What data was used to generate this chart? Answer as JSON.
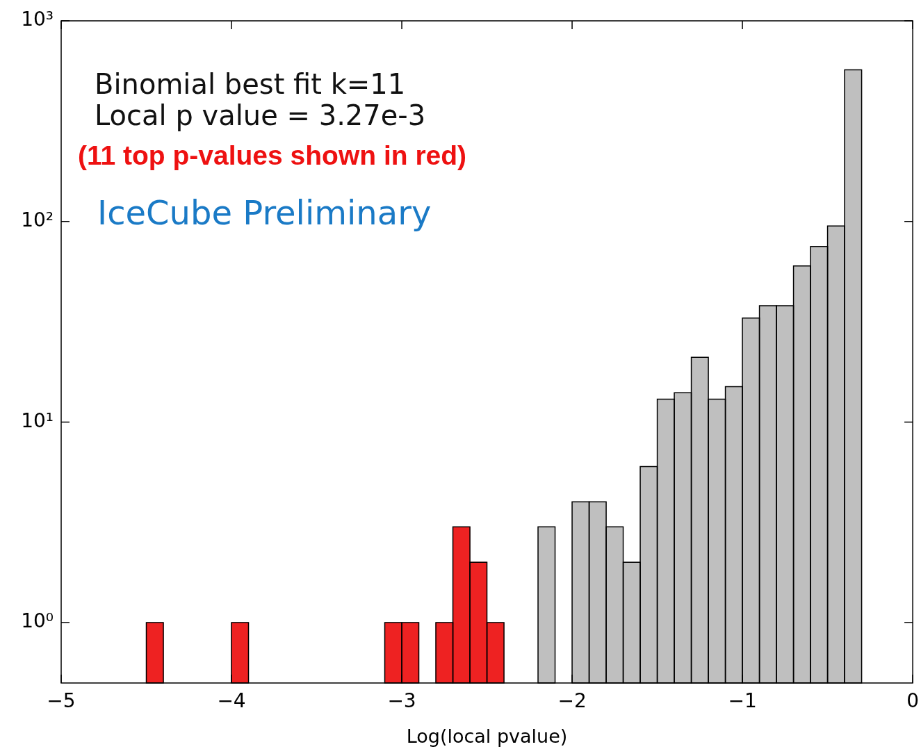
{
  "chart_data": {
    "type": "histogram",
    "xlabel": "Log(local pvalue)",
    "log": "y",
    "bins": [
      -4.5,
      -4.4,
      -4.3,
      -4.2,
      -4.1,
      -4.0,
      -3.9,
      -3.8,
      -3.7,
      -3.6,
      -3.5,
      -3.4,
      -3.3,
      -3.2,
      -3.1,
      -3.0,
      -2.9,
      -2.8,
      -2.7,
      -2.6,
      -2.5,
      -2.4,
      -2.3,
      -2.2,
      -2.1,
      -2.0,
      -1.9,
      -1.8,
      -1.7,
      -1.6,
      -1.5,
      -1.4,
      -1.3,
      -1.2,
      -1.1,
      -1.0,
      -0.9,
      -0.8,
      -0.7,
      -0.6,
      -0.5,
      -0.4,
      -0.3
    ],
    "values": [
      1,
      null,
      null,
      null,
      null,
      1,
      null,
      null,
      null,
      null,
      null,
      null,
      null,
      null,
      1,
      1,
      null,
      1,
      3,
      2,
      1,
      null,
      null,
      3,
      null,
      4,
      4,
      3,
      2,
      6,
      13,
      14,
      21,
      13,
      15,
      33,
      38,
      38,
      60,
      75,
      95,
      570
    ],
    "colors": [
      "#ee2222",
      "#ee2222",
      "#ee2222",
      "#ee2222",
      "#ee2222",
      "#ee2222",
      "#ee2222",
      "#ee2222",
      "#ee2222",
      "#ee2222",
      "#ee2222",
      "#ee2222",
      "#ee2222",
      "#ee2222",
      "#ee2222",
      "#ee2222",
      "#ee2222",
      "#ee2222",
      "#ee2222",
      "#ee2222",
      "#ee2222",
      "#bfbfbf",
      "#bfbfbf",
      "#bfbfbf",
      "#bfbfbf",
      "#bfbfbf",
      "#bfbfbf",
      "#bfbfbf",
      "#bfbfbf",
      "#bfbfbf",
      "#bfbfbf",
      "#bfbfbf",
      "#bfbfbf",
      "#bfbfbf",
      "#bfbfbf",
      "#bfbfbf",
      "#bfbfbf",
      "#bfbfbf",
      "#bfbfbf",
      "#bfbfbf",
      "#bfbfbf",
      "#bfbfbf"
    ],
    "xlim": [
      -5,
      0
    ],
    "xticks": [
      {
        "value": -5,
        "label": "−5"
      },
      {
        "value": -4,
        "label": "−4"
      },
      {
        "value": -3,
        "label": "−3"
      },
      {
        "value": -2,
        "label": "−2"
      },
      {
        "value": -1,
        "label": "−1"
      },
      0
    ],
    "ylim": [
      0.5,
      1000
    ],
    "yticks": [
      {
        "value": 1,
        "label": "10⁰"
      },
      {
        "value": 10,
        "label": "10¹"
      },
      {
        "value": 100,
        "label": "10²"
      },
      {
        "value": 1000,
        "label": "10³"
      }
    ],
    "annotations": [
      "Binomial best fit k=11",
      "Local p value = 3.27e-3",
      "(11 top p-values shown in red)",
      "IceCube Preliminary"
    ]
  }
}
